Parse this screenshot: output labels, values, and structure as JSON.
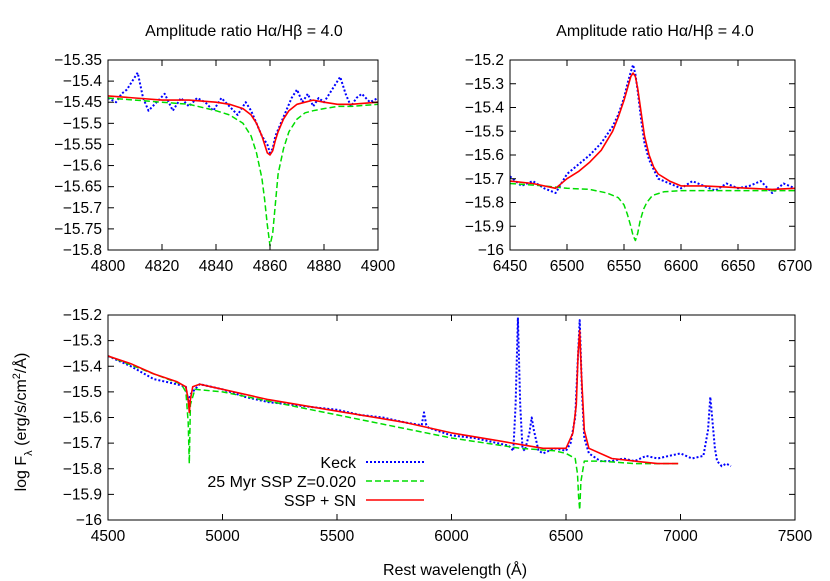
{
  "colors": {
    "keck": "#0000ff",
    "ssp": "#00dd00",
    "sspsn": "#ff0000",
    "frame": "#000000"
  },
  "chart_data": [
    {
      "id": "panel-halpha-hbeta",
      "type": "line",
      "title_parts": [
        "Amplitude ratio H",
        "α",
        "/H",
        "β",
        " = 4.0"
      ],
      "xlim": [
        4800,
        4900
      ],
      "ylim": [
        -15.8,
        -15.35
      ],
      "xticks": [
        4800,
        4820,
        4840,
        4860,
        4880,
        4900
      ],
      "yticks": [
        -15.35,
        -15.4,
        -15.45,
        -15.5,
        -15.55,
        -15.6,
        -15.65,
        -15.7,
        -15.75,
        -15.8
      ],
      "xtick_labels": [
        "4800",
        "4820",
        "4840",
        "4860",
        "4880",
        "4900"
      ],
      "ytick_labels": [
        "−15.35",
        "−15.4",
        "−15.45",
        "−15.5",
        "−15.55",
        "−15.6",
        "−15.65",
        "−15.7",
        "−15.75",
        "−15.8"
      ],
      "series": [
        {
          "key": "keck",
          "style": "dotted",
          "x": [
            4800,
            4803,
            4805,
            4807,
            4809,
            4811,
            4813,
            4815,
            4818,
            4821,
            4824,
            4827,
            4830,
            4833,
            4836,
            4839,
            4842,
            4845,
            4848,
            4851,
            4853,
            4855,
            4857,
            4859,
            4860,
            4861,
            4862,
            4864,
            4866,
            4868,
            4870,
            4872,
            4874,
            4876,
            4878,
            4880,
            4882,
            4884,
            4886,
            4888,
            4890,
            4892,
            4894,
            4897,
            4900
          ],
          "y": [
            -15.44,
            -15.45,
            -15.43,
            -15.42,
            -15.4,
            -15.38,
            -15.44,
            -15.47,
            -15.45,
            -15.43,
            -15.47,
            -15.44,
            -15.46,
            -15.44,
            -15.45,
            -15.47,
            -15.44,
            -15.46,
            -15.48,
            -15.45,
            -15.47,
            -15.5,
            -15.53,
            -15.55,
            -15.57,
            -15.56,
            -15.53,
            -15.5,
            -15.47,
            -15.44,
            -15.42,
            -15.45,
            -15.43,
            -15.46,
            -15.44,
            -15.45,
            -15.43,
            -15.41,
            -15.39,
            -15.43,
            -15.46,
            -15.44,
            -15.43,
            -15.45,
            -15.44
          ]
        },
        {
          "key": "ssp",
          "style": "dashed",
          "x": [
            4800,
            4810,
            4820,
            4830,
            4840,
            4845,
            4850,
            4853,
            4855,
            4857,
            4858,
            4859,
            4860,
            4861,
            4862,
            4863,
            4865,
            4867,
            4870,
            4873,
            4876,
            4880,
            4885,
            4890,
            4900
          ],
          "y": [
            -15.44,
            -15.445,
            -15.45,
            -15.455,
            -15.47,
            -15.48,
            -15.5,
            -15.53,
            -15.57,
            -15.63,
            -15.68,
            -15.74,
            -15.79,
            -15.76,
            -15.69,
            -15.62,
            -15.56,
            -15.52,
            -15.49,
            -15.475,
            -15.47,
            -15.465,
            -15.46,
            -15.46,
            -15.455
          ]
        },
        {
          "key": "sspsn",
          "style": "solid",
          "x": [
            4800,
            4810,
            4820,
            4830,
            4840,
            4845,
            4850,
            4853,
            4855,
            4857,
            4858,
            4859,
            4860,
            4861,
            4862,
            4863,
            4865,
            4867,
            4870,
            4873,
            4876,
            4880,
            4885,
            4890,
            4900
          ],
          "y": [
            -15.435,
            -15.44,
            -15.445,
            -15.445,
            -15.45,
            -15.455,
            -15.465,
            -15.48,
            -15.5,
            -15.53,
            -15.55,
            -15.57,
            -15.575,
            -15.565,
            -15.54,
            -15.52,
            -15.49,
            -15.47,
            -15.455,
            -15.45,
            -15.445,
            -15.45,
            -15.455,
            -15.455,
            -15.45
          ]
        }
      ]
    },
    {
      "id": "panel-halpha",
      "type": "line",
      "title_parts": [
        "Amplitude ratio H",
        "α",
        "/H",
        "β",
        " = 4.0"
      ],
      "xlim": [
        6450,
        6700
      ],
      "ylim": [
        -16,
        -15.2
      ],
      "xticks": [
        6450,
        6500,
        6550,
        6600,
        6650,
        6700
      ],
      "yticks": [
        -15.2,
        -15.3,
        -15.4,
        -15.5,
        -15.6,
        -15.7,
        -15.8,
        -15.9,
        -16
      ],
      "xtick_labels": [
        "6450",
        "6500",
        "6550",
        "6600",
        "6650",
        "6700"
      ],
      "ytick_labels": [
        "−15.2",
        "−15.3",
        "−15.4",
        "−15.5",
        "−15.6",
        "−15.7",
        "−15.8",
        "−15.9",
        "−16"
      ],
      "series": [
        {
          "key": "keck",
          "style": "dotted",
          "x": [
            6450,
            6460,
            6470,
            6480,
            6490,
            6500,
            6510,
            6520,
            6530,
            6540,
            6545,
            6550,
            6553,
            6556,
            6558,
            6560,
            6562,
            6565,
            6568,
            6572,
            6576,
            6580,
            6590,
            6600,
            6610,
            6620,
            6630,
            6640,
            6650,
            6660,
            6670,
            6680,
            6690,
            6700
          ],
          "y": [
            -15.69,
            -15.73,
            -15.71,
            -15.74,
            -15.76,
            -15.68,
            -15.64,
            -15.6,
            -15.55,
            -15.48,
            -15.43,
            -15.36,
            -15.3,
            -15.25,
            -15.22,
            -15.26,
            -15.33,
            -15.45,
            -15.55,
            -15.62,
            -15.66,
            -15.7,
            -15.72,
            -15.74,
            -15.71,
            -15.73,
            -15.75,
            -15.72,
            -15.74,
            -15.73,
            -15.71,
            -15.76,
            -15.72,
            -15.74
          ]
        },
        {
          "key": "ssp",
          "style": "dashed",
          "x": [
            6450,
            6480,
            6500,
            6520,
            6535,
            6545,
            6550,
            6553,
            6556,
            6558,
            6560,
            6562,
            6564,
            6567,
            6570,
            6575,
            6585,
            6600,
            6650,
            6700
          ],
          "y": [
            -15.72,
            -15.73,
            -15.74,
            -15.745,
            -15.76,
            -15.78,
            -15.81,
            -15.85,
            -15.9,
            -15.94,
            -15.96,
            -15.93,
            -15.88,
            -15.83,
            -15.8,
            -15.77,
            -15.755,
            -15.75,
            -15.75,
            -15.75
          ]
        },
        {
          "key": "sspsn",
          "style": "solid",
          "x": [
            6450,
            6470,
            6490,
            6500,
            6510,
            6520,
            6530,
            6540,
            6545,
            6550,
            6553,
            6556,
            6558,
            6560,
            6562,
            6565,
            6568,
            6572,
            6576,
            6580,
            6590,
            6600,
            6620,
            6640,
            6660,
            6680,
            6700
          ],
          "y": [
            -15.71,
            -15.72,
            -15.74,
            -15.7,
            -15.67,
            -15.63,
            -15.58,
            -15.5,
            -15.44,
            -15.37,
            -15.32,
            -15.27,
            -15.255,
            -15.27,
            -15.32,
            -15.42,
            -15.52,
            -15.6,
            -15.65,
            -15.68,
            -15.71,
            -15.73,
            -15.73,
            -15.735,
            -15.74,
            -15.745,
            -15.74
          ]
        }
      ]
    },
    {
      "id": "panel-full-spectrum",
      "type": "line",
      "xlabel": "Rest wavelength (Å)",
      "ylabel_parts": [
        "log F",
        "λ",
        " (erg/s/cm",
        "2",
        "/Å)"
      ],
      "xlim": [
        4500,
        7500
      ],
      "ylim": [
        -16,
        -15.2
      ],
      "xticks": [
        4500,
        5000,
        5500,
        6000,
        6500,
        7000,
        7500
      ],
      "yticks": [
        -15.2,
        -15.3,
        -15.4,
        -15.5,
        -15.6,
        -15.7,
        -15.8,
        -15.9,
        -16
      ],
      "xtick_labels": [
        "4500",
        "5000",
        "5500",
        "6000",
        "6500",
        "7000",
        "7500"
      ],
      "ytick_labels": [
        "−15.2",
        "−15.3",
        "−15.4",
        "−15.5",
        "−15.6",
        "−15.7",
        "−15.8",
        "−15.9",
        "−16"
      ],
      "legend_position": "lower-left",
      "series": [
        {
          "key": "keck",
          "name": "Keck",
          "style": "dotted",
          "x": [
            4500,
            4600,
            4700,
            4800,
            4840,
            4850,
            4860,
            4900,
            5000,
            5100,
            5200,
            5300,
            5400,
            5500,
            5600,
            5700,
            5800,
            5870,
            5880,
            5890,
            5900,
            6000,
            6100,
            6200,
            6250,
            6270,
            6280,
            6290,
            6300,
            6310,
            6320,
            6340,
            6350,
            6360,
            6380,
            6400,
            6450,
            6500,
            6520,
            6540,
            6550,
            6560,
            6570,
            6580,
            6600,
            6650,
            6700,
            6750,
            6800,
            6850,
            6900,
            6950,
            7000,
            7050,
            7100,
            7120,
            7130,
            7140,
            7150,
            7160,
            7180,
            7200,
            7220
          ],
          "y": [
            -15.36,
            -15.4,
            -15.45,
            -15.47,
            -15.48,
            -15.54,
            -15.51,
            -15.47,
            -15.49,
            -15.52,
            -15.54,
            -15.55,
            -15.56,
            -15.57,
            -15.59,
            -15.6,
            -15.62,
            -15.63,
            -15.58,
            -15.63,
            -15.64,
            -15.67,
            -15.68,
            -15.7,
            -15.71,
            -15.73,
            -15.55,
            -15.21,
            -15.55,
            -15.72,
            -15.73,
            -15.66,
            -15.6,
            -15.65,
            -15.73,
            -15.74,
            -15.72,
            -15.73,
            -15.7,
            -15.6,
            -15.4,
            -15.22,
            -15.5,
            -15.68,
            -15.74,
            -15.77,
            -15.77,
            -15.76,
            -15.77,
            -15.75,
            -15.76,
            -15.75,
            -15.74,
            -15.76,
            -15.75,
            -15.65,
            -15.52,
            -15.62,
            -15.72,
            -15.77,
            -15.79,
            -15.78,
            -15.79
          ]
        },
        {
          "key": "ssp",
          "name": "25 Myr SSP Z=0.020",
          "style": "dashed",
          "x": [
            4500,
            4700,
            4820,
            4840,
            4850,
            4855,
            4860,
            4880,
            5000,
            5500,
            6000,
            6300,
            6450,
            6500,
            6540,
            6550,
            6555,
            6560,
            6565,
            6580,
            6650,
            6800,
            6950,
            7000
          ],
          "y": [
            -15.36,
            -15.43,
            -15.47,
            -15.5,
            -15.62,
            -15.78,
            -15.55,
            -15.49,
            -15.5,
            -15.59,
            -15.68,
            -15.72,
            -15.73,
            -15.74,
            -15.76,
            -15.82,
            -15.91,
            -15.96,
            -15.85,
            -15.77,
            -15.77,
            -15.78,
            -15.78,
            -15.78
          ]
        },
        {
          "key": "sspsn",
          "name": "SSP + SN",
          "style": "solid",
          "x": [
            4500,
            4600,
            4700,
            4800,
            4840,
            4850,
            4855,
            4860,
            4870,
            4900,
            5000,
            5200,
            5400,
            5600,
            5800,
            6000,
            6200,
            6400,
            6500,
            6530,
            6545,
            6553,
            6560,
            6567,
            6580,
            6600,
            6700,
            6800,
            6900,
            6990
          ],
          "y": [
            -15.36,
            -15.39,
            -15.43,
            -15.46,
            -15.48,
            -15.53,
            -15.58,
            -15.53,
            -15.48,
            -15.47,
            -15.49,
            -15.53,
            -15.56,
            -15.59,
            -15.62,
            -15.66,
            -15.69,
            -15.72,
            -15.72,
            -15.66,
            -15.55,
            -15.35,
            -15.26,
            -15.42,
            -15.65,
            -15.72,
            -15.76,
            -15.77,
            -15.78,
            -15.78
          ]
        }
      ]
    }
  ]
}
